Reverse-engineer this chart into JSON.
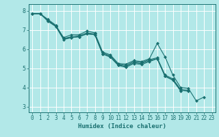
{
  "title": "",
  "xlabel": "Humidex (Indice chaleur)",
  "ylabel": "",
  "bg_color": "#b2e8e8",
  "grid_color": "#ffffff",
  "line_color": "#1a7070",
  "xlim": [
    -0.5,
    23.5
  ],
  "ylim": [
    2.7,
    8.35
  ],
  "xticks": [
    0,
    1,
    2,
    3,
    4,
    5,
    6,
    7,
    8,
    9,
    10,
    11,
    12,
    13,
    14,
    15,
    16,
    17,
    18,
    19,
    20,
    21,
    22,
    23
  ],
  "yticks": [
    3,
    4,
    5,
    6,
    7,
    8
  ],
  "series": [
    [
      7.85,
      7.85,
      7.55,
      7.25,
      6.6,
      6.75,
      6.75,
      6.95,
      6.85,
      5.85,
      5.7,
      5.25,
      5.22,
      5.4,
      5.35,
      5.5,
      6.3,
      5.6,
      4.65,
      4.0,
      3.95,
      3.3,
      3.5,
      null
    ],
    [
      7.85,
      7.85,
      7.5,
      7.2,
      6.55,
      6.65,
      6.7,
      6.85,
      6.8,
      5.8,
      5.65,
      5.22,
      5.15,
      5.35,
      5.3,
      5.45,
      5.55,
      4.65,
      4.45,
      3.9,
      3.85,
      null,
      null,
      null
    ],
    [
      7.85,
      7.85,
      7.45,
      7.18,
      6.5,
      6.6,
      6.65,
      6.8,
      6.75,
      5.75,
      5.6,
      5.18,
      5.1,
      5.3,
      5.25,
      5.4,
      5.5,
      4.6,
      4.4,
      3.85,
      3.8,
      null,
      null,
      null
    ],
    [
      7.85,
      7.85,
      7.5,
      7.2,
      6.55,
      6.6,
      6.65,
      6.8,
      6.75,
      5.75,
      5.58,
      5.15,
      5.05,
      5.25,
      5.2,
      5.35,
      5.5,
      4.58,
      4.38,
      3.82,
      null,
      null,
      null,
      null
    ]
  ],
  "marker": "D",
  "markersize": 2.0,
  "linewidth": 0.8,
  "xlabel_fontsize": 6.5,
  "tick_fontsize": 5.5
}
